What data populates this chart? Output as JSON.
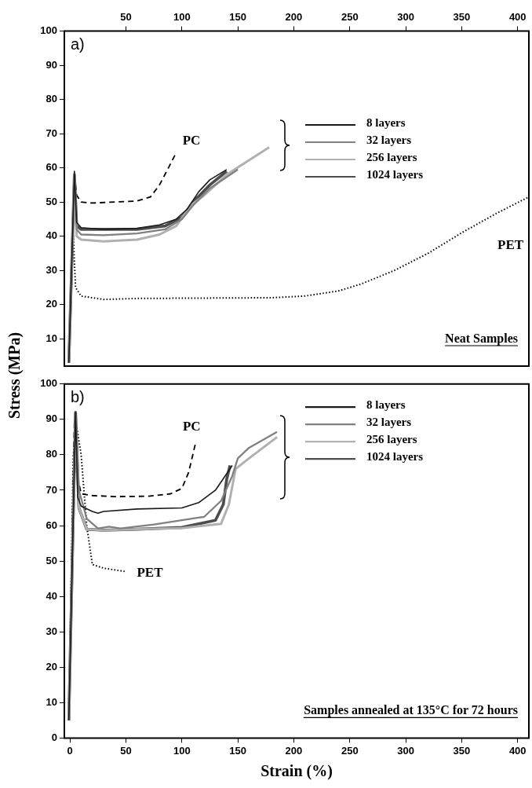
{
  "chart_data": [
    {
      "type": "line",
      "xlim": [
        -5,
        410
      ],
      "xticks": [
        50,
        100,
        150,
        200,
        250,
        300,
        350,
        400
      ],
      "ylim": [
        2,
        100
      ],
      "yticks": [
        10,
        20,
        30,
        40,
        50,
        60,
        70,
        80,
        90,
        100
      ],
      "legend": "top right",
      "marker": "none",
      "annotations": [
        "a)",
        "Neat Samples"
      ],
      "series": [
        {
          "name": "8 layers",
          "color": "#1a1a1a",
          "x": [
            -1,
            4,
            6,
            10,
            30,
            60,
            80,
            95,
            105,
            115,
            125,
            140
          ],
          "values": [
            3,
            59,
            44,
            42.5,
            42,
            42.3,
            43.3,
            45,
            48,
            53,
            56.5,
            59.5
          ]
        },
        {
          "name": "32 layers",
          "color": "#808080",
          "x": [
            -1,
            4,
            6,
            10,
            30,
            60,
            85,
            100,
            110,
            125,
            150
          ],
          "values": [
            3,
            58,
            42,
            40.5,
            40.3,
            40.8,
            42,
            45,
            49,
            54,
            59.5
          ]
        },
        {
          "name": "256 layers",
          "color": "#b0b0b0",
          "x": [
            -1,
            4,
            6,
            10,
            30,
            60,
            80,
            95,
            108,
            120,
            140,
            178
          ],
          "values": [
            3,
            58,
            40,
            39,
            38.5,
            39,
            40.5,
            43,
            49,
            52,
            58,
            66
          ]
        },
        {
          "name": "1024 layers",
          "color": "#4d4d4d",
          "x": [
            -1,
            4,
            6,
            10,
            30,
            60,
            85,
            100,
            110,
            125,
            140
          ],
          "values": [
            3,
            58,
            43,
            42,
            42,
            42,
            43,
            45.5,
            50,
            55,
            59
          ]
        },
        {
          "name": "PC",
          "color": "#000000",
          "line_style": "dashed",
          "x": [
            -1,
            4,
            6,
            10,
            20,
            40,
            60,
            72,
            80,
            88,
            95
          ],
          "values": [
            3,
            58,
            52,
            50,
            49.7,
            50,
            50.3,
            51.5,
            55,
            60,
            64.5
          ]
        },
        {
          "name": "PET",
          "color": "#000000",
          "line_style": "dotted",
          "x": [
            -1,
            3,
            5,
            10,
            30,
            60,
            120,
            180,
            210,
            240,
            260,
            290,
            320,
            350,
            380,
            410
          ],
          "values": [
            3,
            40,
            25,
            22.5,
            21.5,
            21.8,
            21.9,
            22,
            22.5,
            24,
            26,
            30,
            35,
            41,
            46.5,
            51.5
          ]
        }
      ]
    },
    {
      "type": "line",
      "xlabel": "Strain (%)",
      "ylabel": "Stress (MPa)",
      "xlim": [
        -5,
        410
      ],
      "xticks": [
        0,
        50,
        100,
        150,
        200,
        250,
        300,
        350,
        400
      ],
      "ylim": [
        0,
        100
      ],
      "yticks": [
        0,
        10,
        20,
        30,
        40,
        50,
        60,
        70,
        80,
        90,
        100
      ],
      "legend": "top right",
      "marker": "none",
      "annotations": [
        "b)",
        "Samples annealed at 135°C for 72 hours"
      ],
      "series": [
        {
          "name": "8 layers",
          "color": "#1a1a1a",
          "x": [
            -1,
            5,
            7,
            10,
            20,
            25,
            30,
            60,
            100,
            115,
            130,
            145
          ],
          "values": [
            5,
            92,
            68,
            65.5,
            64,
            63.5,
            64,
            64.7,
            65,
            66.5,
            70,
            77
          ]
        },
        {
          "name": "32 layers",
          "color": "#808080",
          "x": [
            -1,
            5,
            8,
            15,
            25,
            35,
            45,
            75,
            120,
            135,
            145,
            150,
            160,
            185
          ],
          "values": [
            5,
            92,
            70,
            62,
            59.2,
            59.7,
            59.2,
            60.3,
            62.5,
            67,
            74,
            79,
            82,
            86.5
          ]
        },
        {
          "name": "256 layers",
          "color": "#b0b0b0",
          "x": [
            -1,
            5,
            8,
            15,
            30,
            60,
            100,
            135,
            142,
            148,
            160,
            185
          ],
          "values": [
            5,
            90,
            65,
            59,
            58.7,
            59,
            59.3,
            60.5,
            66,
            76,
            79,
            85
          ]
        },
        {
          "name": "1024 layers",
          "color": "#4d4d4d",
          "x": [
            -1,
            5,
            8,
            15,
            30,
            60,
            100,
            130,
            137,
            140,
            143
          ],
          "values": [
            5,
            92,
            65,
            59,
            58.7,
            59,
            59.5,
            61.5,
            66,
            73,
            77
          ]
        },
        {
          "name": "PC",
          "color": "#000000",
          "line_style": "dashed",
          "x": [
            -1,
            4,
            6,
            10,
            20,
            40,
            70,
            90,
            100,
            106,
            112
          ],
          "values": [
            5,
            90,
            75,
            69,
            68.5,
            68.2,
            68.3,
            69,
            70.5,
            75,
            83
          ]
        },
        {
          "name": "PET",
          "color": "#000000",
          "line_style": "dotted",
          "x": [
            -1,
            3,
            6,
            10,
            15,
            20,
            30,
            50
          ],
          "values": [
            5,
            80,
            88,
            80,
            60,
            49,
            48,
            47
          ]
        }
      ]
    }
  ]
}
